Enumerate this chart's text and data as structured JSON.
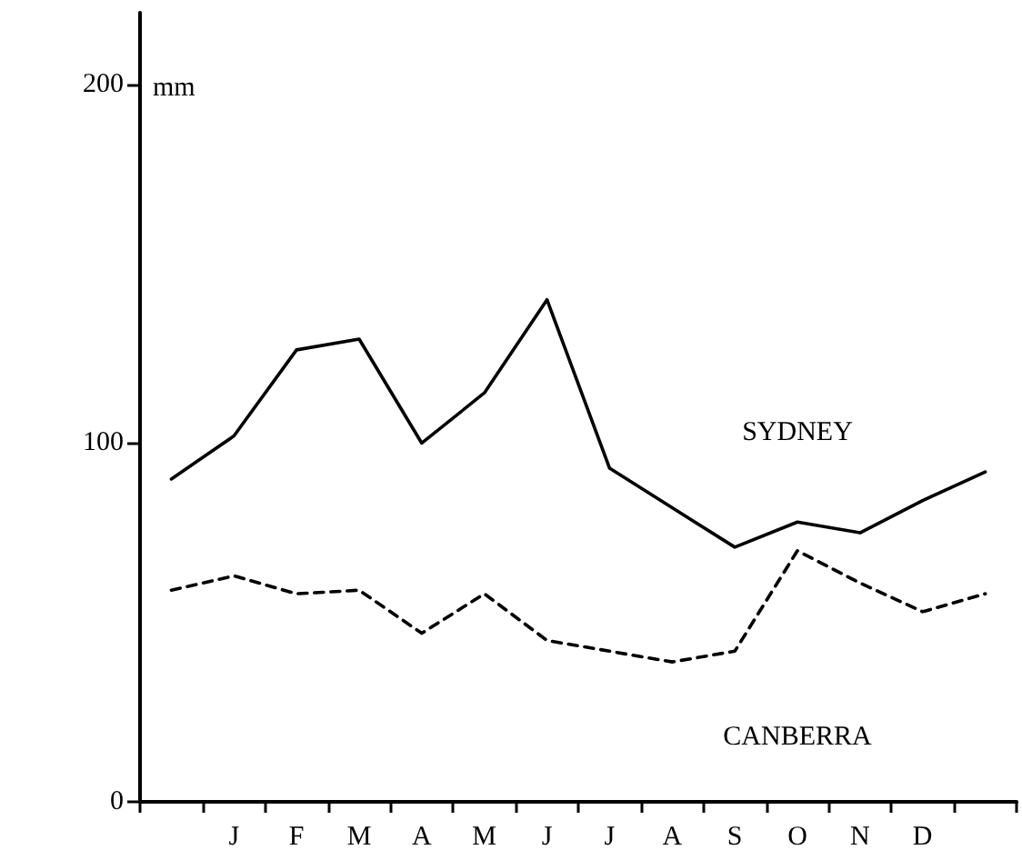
{
  "chart_data": {
    "type": "line",
    "ylabel": "mm",
    "marker": "none",
    "grid": false,
    "legend": false,
    "categories": [
      null,
      "J",
      "F",
      "M",
      "A",
      "M",
      "J",
      "J",
      "A",
      "S",
      "O",
      "N",
      "D",
      null
    ],
    "ylim": [
      0,
      220
    ],
    "yticks": [
      0,
      100,
      200
    ],
    "series": [
      {
        "name": "SYDNEY",
        "color": "#000000",
        "line_style": "solid",
        "values": [
          90,
          102,
          126,
          129,
          100,
          114,
          140,
          93,
          82,
          71,
          78,
          75,
          84,
          92
        ]
      },
      {
        "name": "CANBERRA",
        "color": "#000000",
        "line_style": "dashed",
        "values": [
          59,
          63,
          58,
          59,
          47,
          58,
          45,
          42,
          39,
          42,
          70,
          61,
          53,
          58
        ]
      }
    ]
  }
}
